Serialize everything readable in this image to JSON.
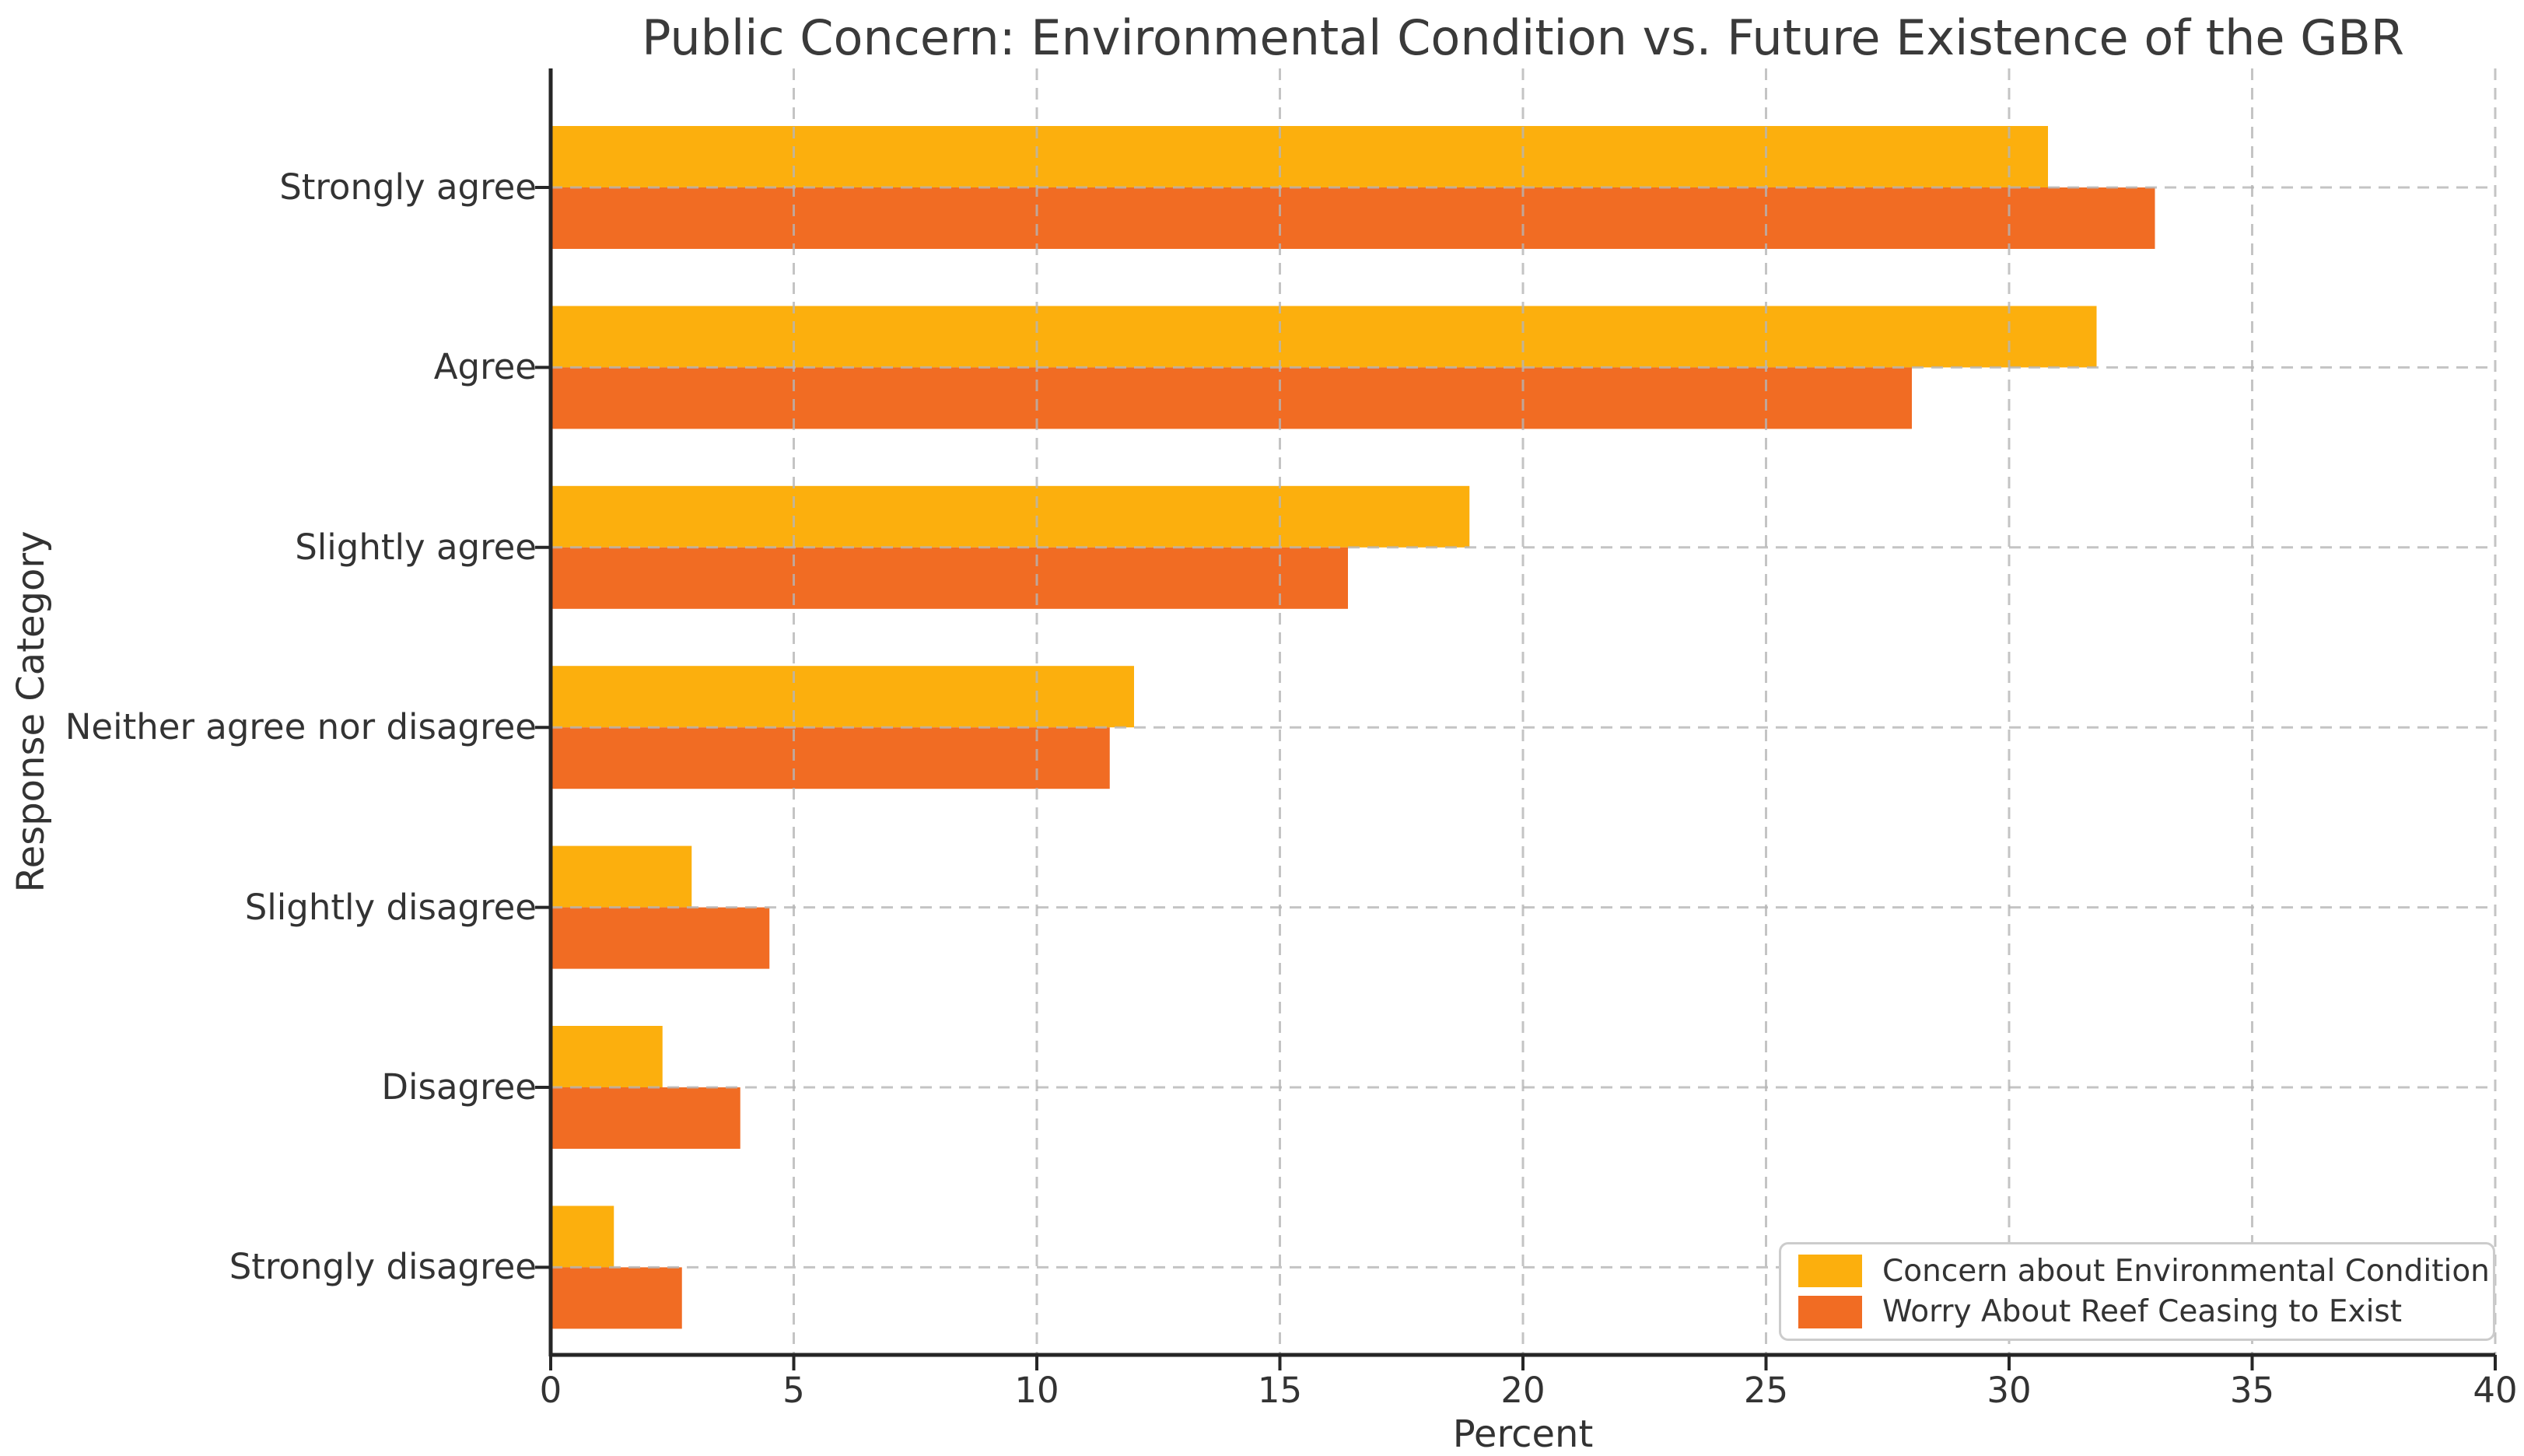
{
  "chart_data": {
    "type": "bar",
    "orientation": "horizontal",
    "title": "Public Concern: Environmental Condition vs. Future Existence of the GBR",
    "xlabel": "Percent",
    "ylabel": "Response Category",
    "categories": [
      "Strongly agree",
      "Agree",
      "Slightly agree",
      "Neither agree nor disagree",
      "Slightly disagree",
      "Disagree",
      "Strongly disagree"
    ],
    "series": [
      {
        "name": "Concern about Environmental Condition",
        "color": "#FCAF0D",
        "values": [
          30.8,
          31.8,
          18.9,
          12.0,
          2.9,
          2.3,
          1.3
        ]
      },
      {
        "name": "Worry About Reef Ceasing to Exist",
        "color": "#F16C23",
        "values": [
          33.0,
          28.0,
          16.4,
          11.5,
          4.5,
          3.9,
          2.7
        ]
      }
    ],
    "xlim": [
      0,
      40
    ],
    "xticks": [
      0,
      5,
      10,
      15,
      20,
      25,
      30,
      35,
      40
    ],
    "grid": "dashed gridlines at x ticks and category centers",
    "legend_position": "lower right",
    "spine_color": "#262626",
    "grid_color": "#b5b5b5"
  }
}
